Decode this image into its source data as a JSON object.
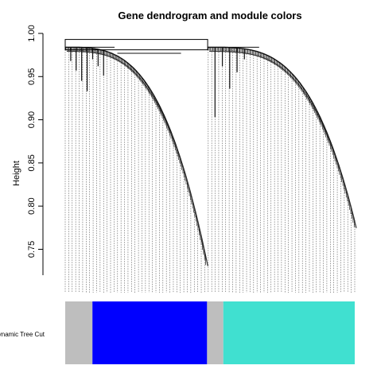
{
  "chart_data": {
    "type": "dendrogram",
    "title": "Gene dendrogram and module colors",
    "xlabel": "",
    "ylabel": "Height",
    "ylim": [
      0.72,
      1.0
    ],
    "yticks": [
      0.75,
      0.8,
      0.85,
      0.9,
      0.95,
      1.0
    ],
    "ytick_labels": [
      "0.75",
      "0.80",
      "0.85",
      "0.90",
      "0.95",
      "1.00"
    ],
    "root_merge_height": 0.993,
    "clusters": [
      {
        "leaf_start": 0.0,
        "leaf_end": 0.487,
        "top_height": 0.984,
        "bottom_height": 0.738,
        "curve_exponent": 3.2,
        "notch_heights": [
          0.968,
          0.957,
          0.945,
          0.933,
          0.97,
          0.962,
          0.951
        ]
      },
      {
        "leaf_start": 0.492,
        "leaf_end": 1.0,
        "top_height": 0.984,
        "bottom_height": 0.782,
        "curve_exponent": 3.4,
        "notch_heights": [
          0.903,
          0.962,
          0.936,
          0.955,
          0.97
        ]
      }
    ],
    "module_colors": {
      "row_label": "Dynamic Tree Cut",
      "segments": [
        {
          "start": 0.0,
          "end": 0.094,
          "color": "#bebebe"
        },
        {
          "start": 0.094,
          "end": 0.49,
          "color": "#0000ff"
        },
        {
          "start": 0.49,
          "end": 0.546,
          "color": "#bebebe"
        },
        {
          "start": 0.546,
          "end": 1.0,
          "color": "#40e0d0"
        }
      ]
    }
  }
}
